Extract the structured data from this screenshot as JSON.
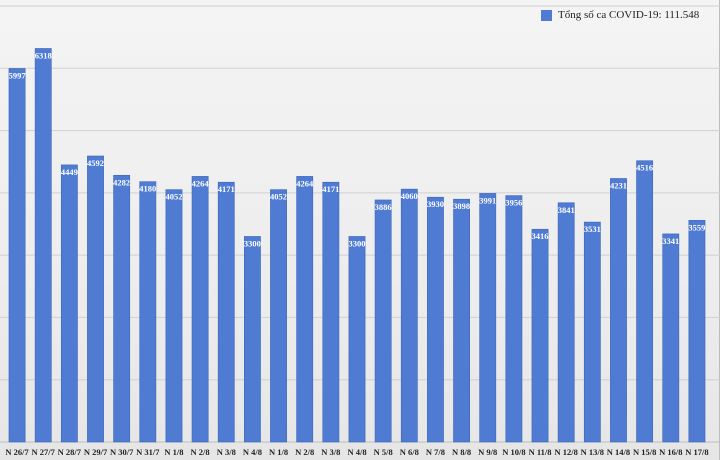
{
  "chart_data": {
    "type": "bar",
    "title": "",
    "xlabel": "",
    "ylabel": "",
    "categories": [
      "N 26/7",
      "N 27/7",
      "N 28/7",
      "N 29/7",
      "N 30/7",
      "N 31/7",
      "N 1/8",
      "N 2/8",
      "N 3/8",
      "N 4/8",
      "N 1/8",
      "N 2/8",
      "N 3/8",
      "N 4/8",
      "N 5/8",
      "N 6/8",
      "N 7/8",
      "N 8/8",
      "N 9/8",
      "N 10/8",
      "N 11/8",
      "N 12/8",
      "N 13/8",
      "N 14/8",
      "N 15/8",
      "N 16/8",
      "N 17/8"
    ],
    "series": [
      {
        "name": "Tổng số ca COVID-19: 111.548",
        "color": "#4f7bd2",
        "values": [
          5997,
          6318,
          4449,
          4592,
          4282,
          4180,
          4052,
          4264,
          4171,
          3300,
          4052,
          4264,
          4171,
          3300,
          3886,
          4060,
          3930,
          3898,
          3991,
          3956,
          3416,
          3841,
          3531,
          4231,
          4516,
          3341,
          3559
        ]
      }
    ],
    "ylim": [
      0,
      7000
    ],
    "gridlines": [
      1000,
      2000,
      3000,
      4000,
      5000,
      6000,
      7000
    ],
    "legend_position": "top-right",
    "grid": true
  }
}
